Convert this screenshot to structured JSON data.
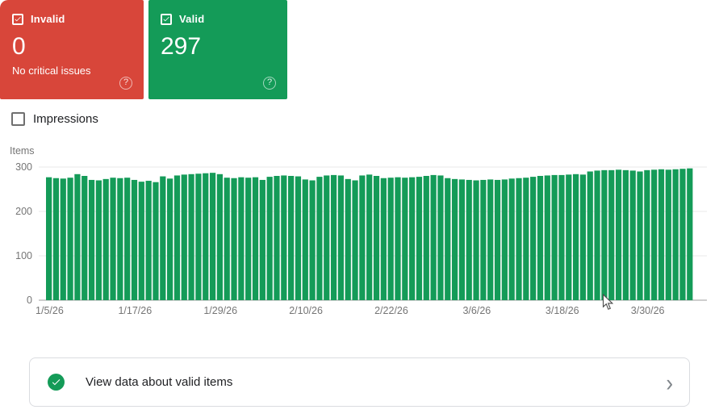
{
  "cards": {
    "help_glyph": "?",
    "invalid": {
      "label": "Invalid",
      "value": "0",
      "subtext": "No critical issues",
      "bg": "#d8463a"
    },
    "valid": {
      "label": "Valid",
      "value": "297",
      "bg": "#149b58"
    }
  },
  "impressions_toggle": {
    "label": "Impressions",
    "checked": false
  },
  "chart_data": {
    "type": "bar",
    "title": "",
    "ylabel": "Items",
    "xlabel": "",
    "ylim": [
      0,
      300
    ],
    "yticks": [
      0,
      100,
      200,
      300
    ],
    "grid": true,
    "legend": "none",
    "bar_color": "#149b58",
    "x_tick_labels": [
      "1/5/26",
      "1/17/26",
      "1/29/26",
      "2/10/26",
      "2/22/26",
      "3/6/26",
      "3/18/26",
      "3/30/26"
    ],
    "x_tick_days": [
      0,
      12,
      24,
      36,
      48,
      60,
      72,
      84
    ],
    "x_start_date": "1/5/26",
    "x_end_date": "4/5/26",
    "values": [
      277,
      275,
      274,
      276,
      284,
      280,
      271,
      270,
      273,
      276,
      275,
      276,
      271,
      267,
      269,
      266,
      279,
      274,
      281,
      283,
      284,
      285,
      286,
      287,
      284,
      276,
      275,
      277,
      276,
      277,
      271,
      278,
      280,
      281,
      280,
      279,
      272,
      270,
      278,
      281,
      282,
      281,
      273,
      270,
      281,
      283,
      280,
      275,
      276,
      277,
      276,
      277,
      278,
      280,
      282,
      281,
      275,
      273,
      272,
      271,
      270,
      271,
      272,
      271,
      272,
      274,
      275,
      276,
      278,
      280,
      281,
      282,
      282,
      283,
      284,
      283,
      290,
      292,
      293,
      293,
      294,
      293,
      292,
      290,
      293,
      294,
      295,
      294,
      295,
      296,
      297
    ]
  },
  "footer_card": {
    "label": "View data about valid items",
    "chevron": "›"
  },
  "colors": {
    "invalid_red": "#d8463a",
    "valid_green": "#149b58",
    "grid_line": "#e8e8e8",
    "axis_line": "#9e9e9e",
    "axis_text": "#757575",
    "footer_border": "#dadce0",
    "chevron_gray": "#80868b"
  }
}
